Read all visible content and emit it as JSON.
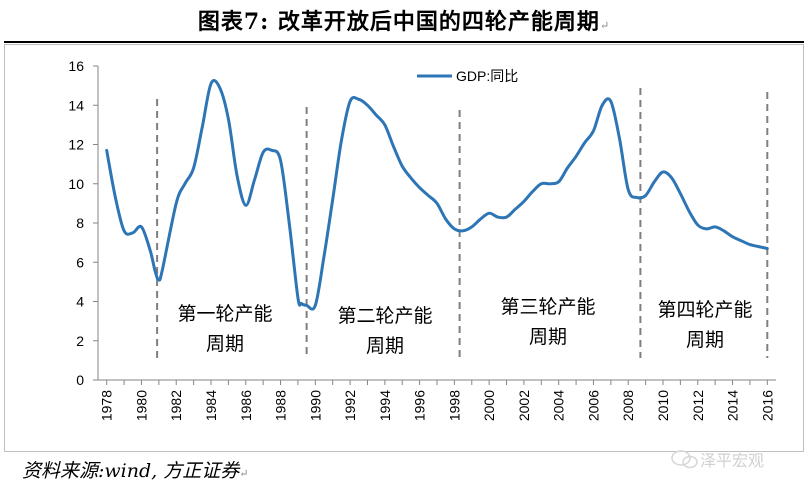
{
  "header": {
    "title": "图表7:  改革开放后中国的四轮产能周期",
    "title_mark": "↵"
  },
  "footer": {
    "source": "资料来源:wind, 方正证券",
    "source_mark": "↵",
    "watermark": "泽平宏观"
  },
  "colors": {
    "line": "#2e75b6",
    "divider": "#7f7f7f",
    "axis": "#868686"
  },
  "chart_data": {
    "type": "line",
    "title": "",
    "xlabel": "",
    "ylabel": "",
    "ylim": [
      0,
      16
    ],
    "xlim": [
      1977.5,
      2016.5
    ],
    "yticks": [
      "0",
      "2",
      "4",
      "6",
      "8",
      "10",
      "12",
      "14",
      "16"
    ],
    "xticks": [
      "1978",
      "1980",
      "1982",
      "1984",
      "1986",
      "1988",
      "1990",
      "1992",
      "1994",
      "1996",
      "1998",
      "2000",
      "2002",
      "2004",
      "2006",
      "2008",
      "2010",
      "2012",
      "2014",
      "2016"
    ],
    "legend": {
      "label": "GDP:同比",
      "position": "top-center"
    },
    "series": [
      {
        "name": "GDP:同比",
        "x": [
          1978,
          1978.5,
          1979,
          1979.5,
          1980,
          1980.5,
          1980.8,
          1981,
          1981.2,
          1982,
          1982.5,
          1983,
          1983.5,
          1984,
          1984.5,
          1985,
          1985.5,
          1986,
          1986.5,
          1987,
          1987.5,
          1988,
          1988.5,
          1989,
          1989.2,
          1989.5,
          1990,
          1990.5,
          1991,
          1991.5,
          1992,
          1992.5,
          1993,
          1993.5,
          1994,
          1994.5,
          1995,
          1995.5,
          1996,
          1996.5,
          1997,
          1997.5,
          1998,
          1998.5,
          1999,
          1999.5,
          2000,
          2000.5,
          2001,
          2001.5,
          2002,
          2002.5,
          2003,
          2003.5,
          2004,
          2004.5,
          2005,
          2005.5,
          2006,
          2006.5,
          2007,
          2007.5,
          2008,
          2008.5,
          2009,
          2009.5,
          2010,
          2010.5,
          2011,
          2011.5,
          2012,
          2012.5,
          2013,
          2013.5,
          2014,
          2014.5,
          2015,
          2015.5,
          2016
        ],
        "values": [
          11.7,
          9.3,
          7.6,
          7.5,
          7.8,
          6.6,
          5.5,
          5.1,
          5.6,
          9.0,
          10.0,
          10.8,
          12.9,
          15.1,
          14.9,
          13.3,
          10.4,
          8.9,
          10.2,
          11.6,
          11.7,
          11.2,
          8.0,
          4.2,
          3.9,
          3.8,
          3.8,
          6.3,
          9.2,
          12.2,
          14.2,
          14.3,
          14.0,
          13.5,
          13.0,
          11.9,
          10.9,
          10.3,
          9.8,
          9.4,
          9.0,
          8.2,
          7.7,
          7.6,
          7.8,
          8.2,
          8.5,
          8.3,
          8.3,
          8.7,
          9.1,
          9.6,
          10.0,
          10.0,
          10.1,
          10.8,
          11.4,
          12.1,
          12.7,
          14.0,
          14.2,
          12.3,
          9.7,
          9.3,
          9.4,
          10.1,
          10.6,
          10.3,
          9.5,
          8.6,
          7.9,
          7.7,
          7.8,
          7.6,
          7.3,
          7.1,
          6.9,
          6.8,
          6.7
        ]
      }
    ],
    "dividers": [
      1980.9,
      1989.5,
      1998.3,
      2008.7,
      2016
    ],
    "annotations": [
      {
        "line1": "第一轮产能",
        "line2": "周期"
      },
      {
        "line1": "第二轮产能",
        "line2": "周期"
      },
      {
        "line1": "第三轮产能",
        "line2": "周期"
      },
      {
        "line1": "第四轮产能",
        "line2": "周期"
      }
    ]
  }
}
